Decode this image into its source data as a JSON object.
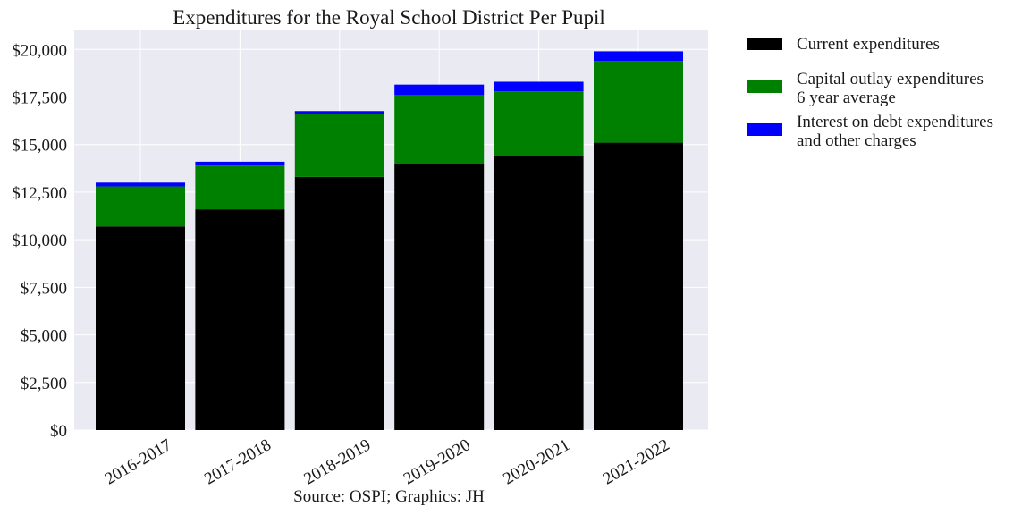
{
  "chart_data": {
    "type": "bar",
    "stacked": true,
    "title": "Expenditures for the Royal School District Per Pupil",
    "xlabel": "Source: OSPI; Graphics: JH",
    "ylabel": "",
    "categories": [
      "2016-2017",
      "2017-2018",
      "2018-2019",
      "2019-2020",
      "2020-2021",
      "2021-2022"
    ],
    "ylim": [
      0,
      21000
    ],
    "yticks": [
      0,
      2500,
      5000,
      7500,
      10000,
      12500,
      15000,
      17500,
      20000
    ],
    "ytick_labels": [
      "$0",
      "$2,500",
      "$5,000",
      "$7,500",
      "$10,000",
      "$12,500",
      "$15,000",
      "$17,500",
      "$20,000"
    ],
    "grid": true,
    "legend_position": "outside-right-top",
    "series": [
      {
        "name": "Current expenditures",
        "color": "#000000",
        "values": [
          10700,
          11600,
          13300,
          14000,
          14400,
          15100
        ]
      },
      {
        "name": "Capital outlay expenditures\n6 year average",
        "color": "#008000",
        "values": [
          2100,
          2300,
          3300,
          3600,
          3400,
          4300
        ]
      },
      {
        "name": "Interest on debt expenditures\nand other charges",
        "color": "#0000ff",
        "values": [
          200,
          200,
          160,
          550,
          500,
          500
        ]
      }
    ],
    "background_color": "#eaeaf2"
  }
}
